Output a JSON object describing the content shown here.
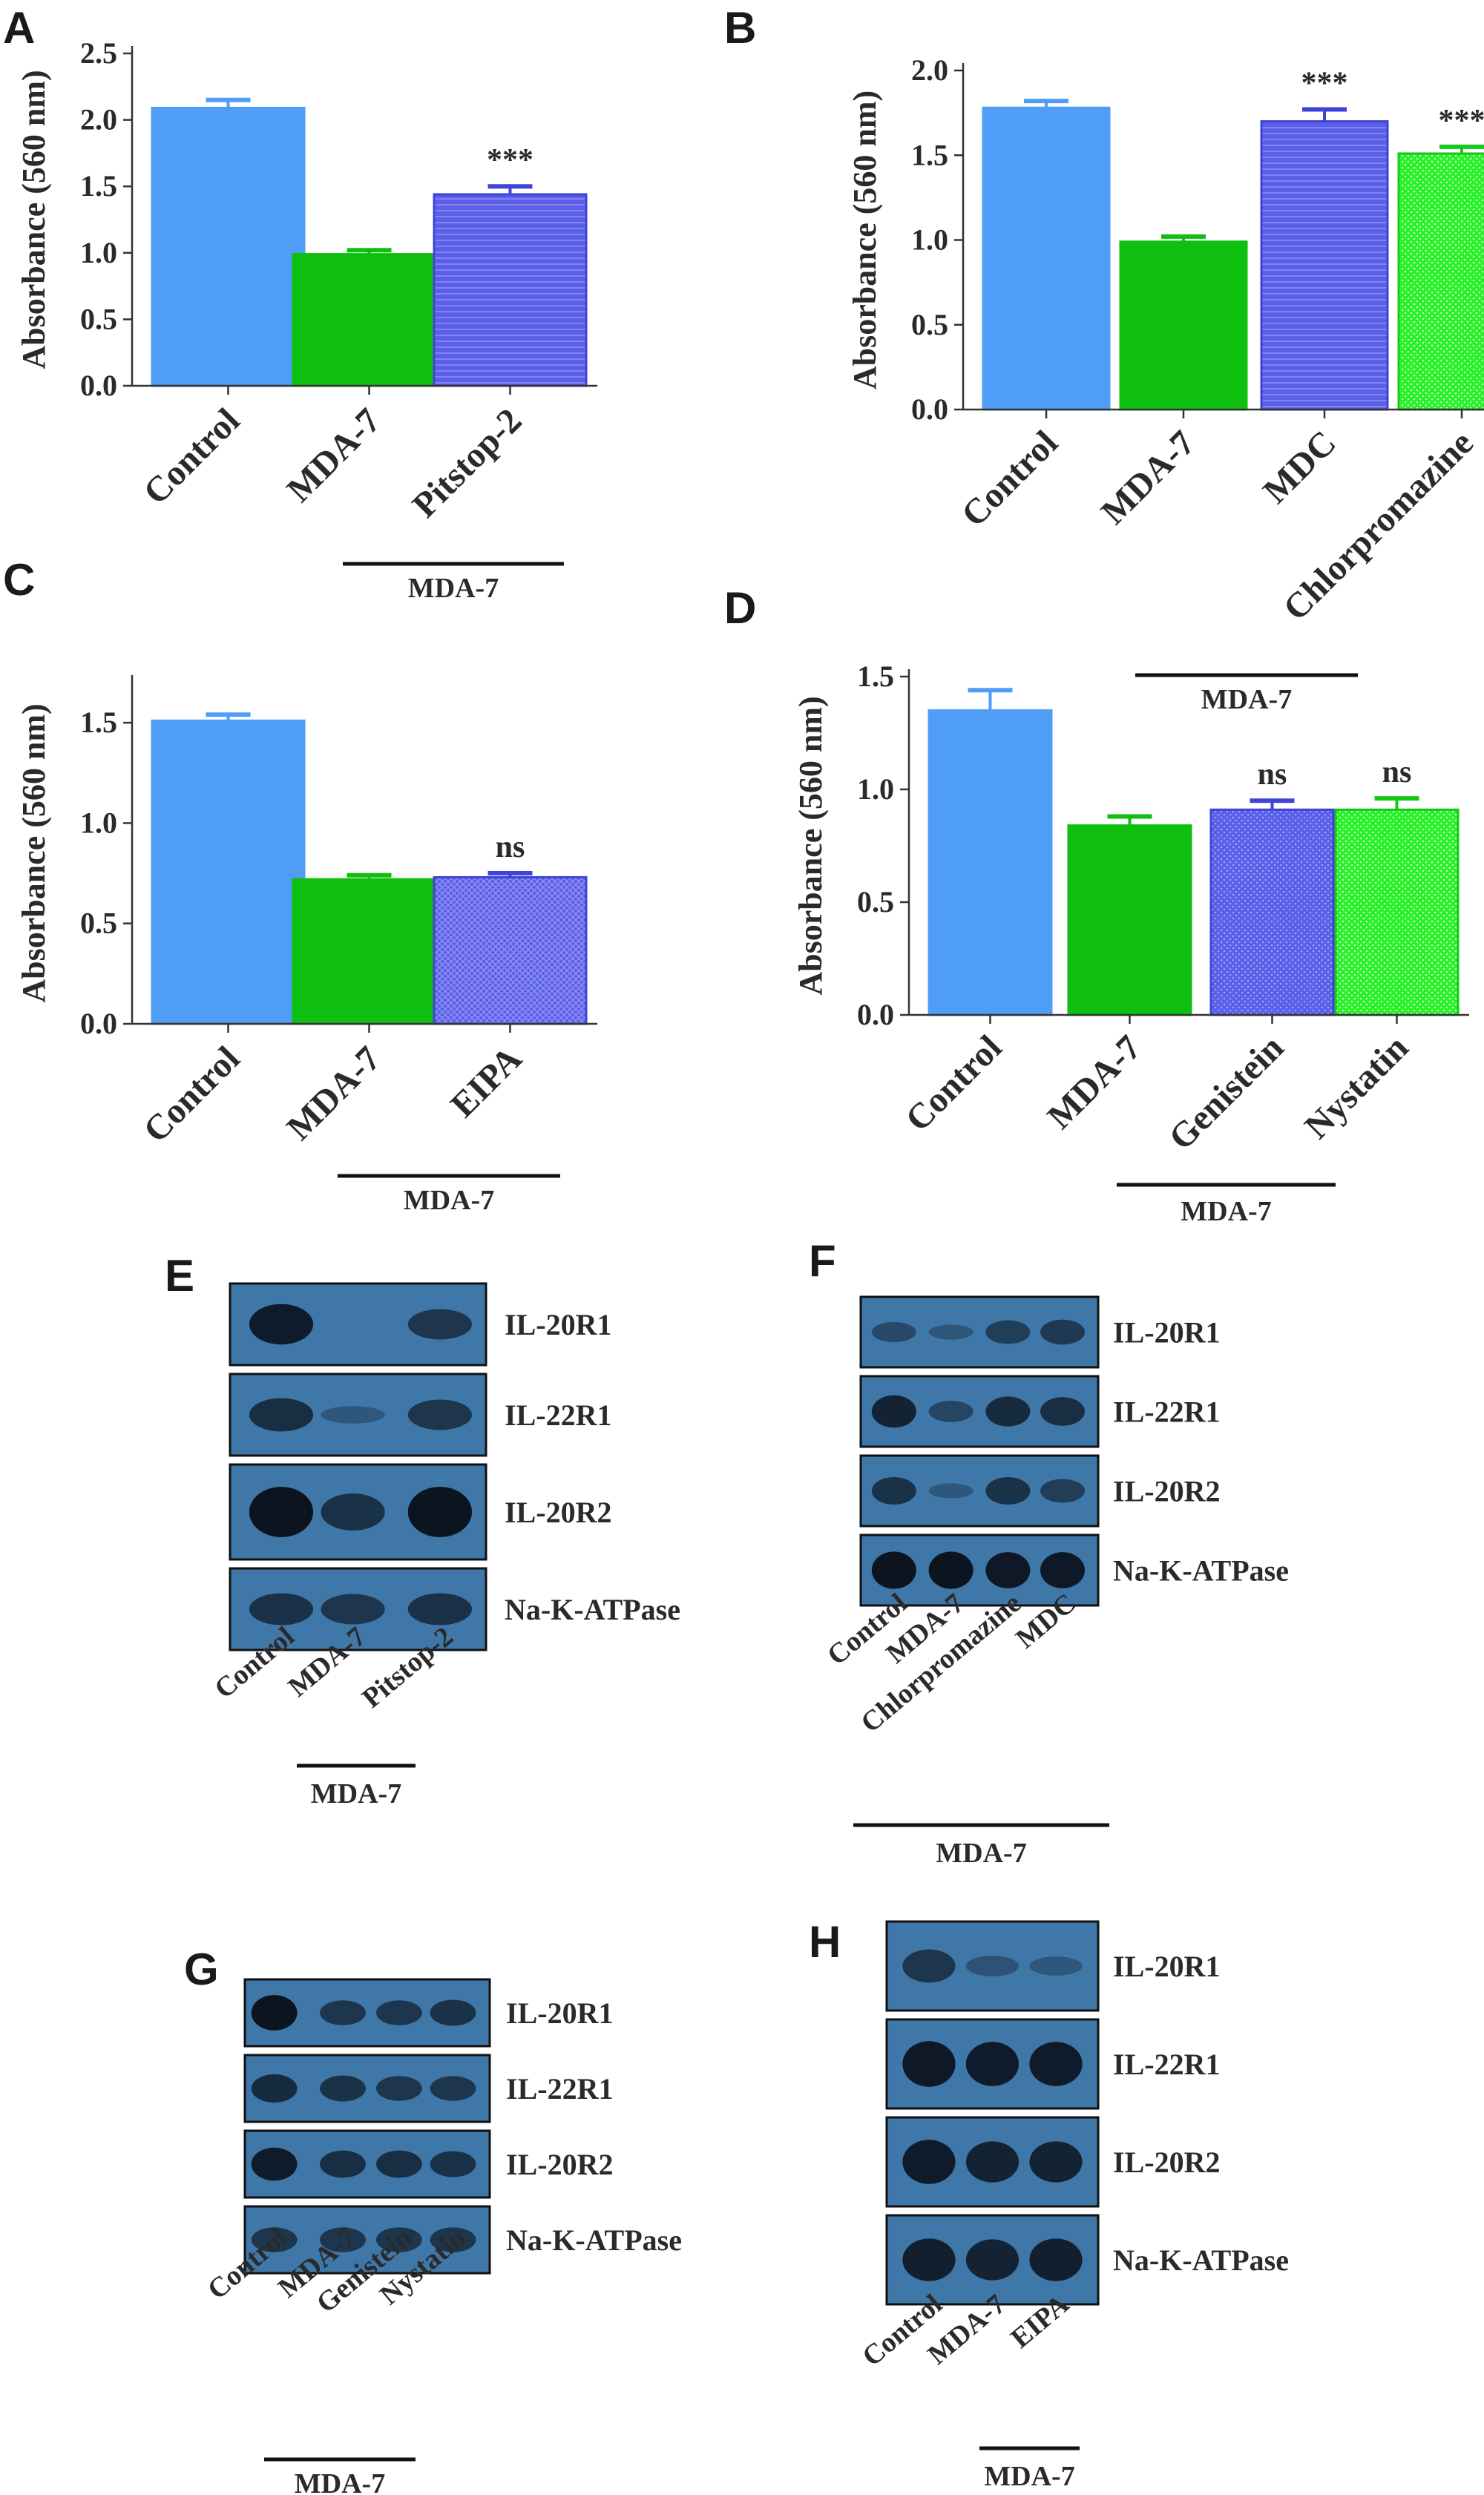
{
  "letters": [
    "A",
    "B",
    "C",
    "D",
    "E",
    "F",
    "G",
    "H"
  ],
  "colors": {
    "control": "#4f9df5",
    "mda7": "#0fbf0f",
    "blue_treat": "#5b5fe8",
    "green_treat": "#2af02a",
    "blot_bg": "#3f78a8",
    "band": "#0c1420"
  },
  "chart_data": [
    {
      "panel": "A",
      "type": "bar",
      "ylabel": "Absorbance (560 nm)",
      "ylim": [
        0,
        2.5
      ],
      "yticks": [
        "0.0",
        "0.5",
        "1.0",
        "1.5",
        "2.0",
        "2.5"
      ],
      "categories": [
        "Control",
        "MDA-7",
        "Pitstop-2"
      ],
      "values": [
        2.09,
        0.99,
        1.44
      ],
      "errors": [
        0.06,
        0.03,
        0.06
      ],
      "annotations": [
        "",
        "",
        "***"
      ],
      "group_label": "MDA-7"
    },
    {
      "panel": "B",
      "type": "bar",
      "ylabel": "Absorbance (560 nm)",
      "ylim": [
        0,
        2.0
      ],
      "yticks": [
        "0.0",
        "0.5",
        "1.0",
        "1.5",
        "2.0"
      ],
      "categories": [
        "Control",
        "MDA-7",
        "MDC",
        "Chlorpromazine"
      ],
      "values": [
        1.78,
        0.99,
        1.7,
        1.51
      ],
      "errors": [
        0.04,
        0.03,
        0.07,
        0.04
      ],
      "annotations": [
        "",
        "",
        "***",
        "***"
      ],
      "group_label": "MDA-7"
    },
    {
      "panel": "C",
      "type": "bar",
      "ylabel": "Absorbance (560 nm)",
      "ylim": [
        0,
        1.7
      ],
      "yticks": [
        "0.0",
        "0.5",
        "1.0",
        "1.5"
      ],
      "categories": [
        "Control",
        "MDA-7",
        "EIPA"
      ],
      "values": [
        1.51,
        0.72,
        0.73
      ],
      "errors": [
        0.03,
        0.02,
        0.02
      ],
      "annotations": [
        "",
        "",
        "ns"
      ],
      "group_label": "MDA-7"
    },
    {
      "panel": "D",
      "type": "bar",
      "ylabel": "Absorbance (560 nm)",
      "ylim": [
        0,
        1.5
      ],
      "yticks": [
        "0.0",
        "0.5",
        "1.0",
        "1.5"
      ],
      "categories": [
        "Control",
        "MDA-7",
        "Genistein",
        "Nystatin"
      ],
      "values": [
        1.35,
        0.84,
        0.91,
        0.91
      ],
      "errors": [
        0.09,
        0.04,
        0.04,
        0.05
      ],
      "annotations": [
        "",
        "",
        "ns",
        "ns"
      ],
      "group_label": "MDA-7"
    }
  ],
  "blots": [
    {
      "panel": "E",
      "rows": [
        "IL-20R1",
        "IL-22R1",
        "IL-20R2",
        "Na-K-ATPase"
      ],
      "lanes": [
        "Control",
        "MDA-7",
        "Pitstop-2"
      ],
      "intensity": [
        [
          0.9,
          0.0,
          0.55
        ],
        [
          0.65,
          0.1,
          0.55
        ],
        [
          1.0,
          0.6,
          1.0
        ],
        [
          0.6,
          0.55,
          0.6
        ]
      ],
      "group_label": "MDA-7"
    },
    {
      "panel": "F",
      "rows": [
        "IL-20R1",
        "IL-22R1",
        "IL-20R2",
        "Na-K-ATPase"
      ],
      "lanes": [
        "Control",
        "MDA-7",
        "Chlorpromazine",
        "MDC"
      ],
      "intensity": [
        [
          0.3,
          0.1,
          0.45,
          0.5
        ],
        [
          0.8,
          0.35,
          0.7,
          0.65
        ],
        [
          0.6,
          0.1,
          0.6,
          0.45
        ],
        [
          1.0,
          1.0,
          0.95,
          0.95
        ]
      ],
      "group_label": "MDA-7"
    },
    {
      "panel": "G",
      "rows": [
        "IL-20R1",
        "IL-22R1",
        "IL-20R2",
        "Na-K-ATPase"
      ],
      "lanes": [
        "Control",
        "MDA-7",
        "Genistein",
        "Nystatin"
      ],
      "intensity": [
        [
          1.0,
          0.55,
          0.55,
          0.6
        ],
        [
          0.7,
          0.6,
          0.55,
          0.55
        ],
        [
          0.9,
          0.65,
          0.65,
          0.6
        ],
        [
          0.55,
          0.55,
          0.55,
          0.55
        ]
      ],
      "group_label": "MDA-7"
    },
    {
      "panel": "H",
      "rows": [
        "IL-20R1",
        "IL-22R1",
        "IL-20R2",
        "Na-K-ATPase"
      ],
      "lanes": [
        "Control",
        "MDA-7",
        "EIPA"
      ],
      "intensity": [
        [
          0.55,
          0.15,
          0.1
        ],
        [
          0.95,
          0.9,
          0.9
        ],
        [
          0.9,
          0.8,
          0.8
        ],
        [
          0.85,
          0.8,
          0.85
        ]
      ],
      "group_label": "MDA-7"
    }
  ]
}
